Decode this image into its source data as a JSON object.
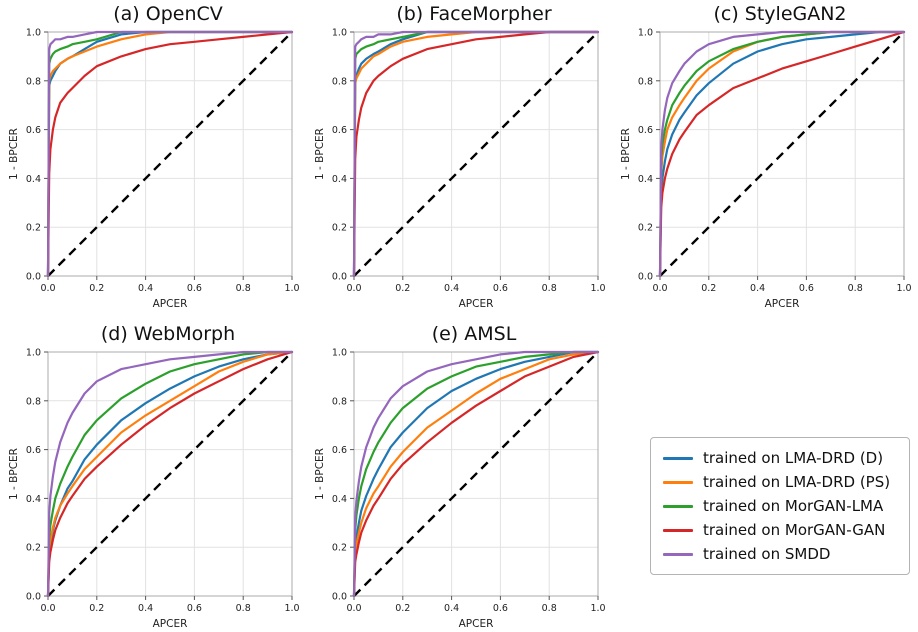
{
  "figure": {
    "description": "DET/ROC-style curves: 1-BPCER vs APCER for five morphing attack test sets"
  },
  "legend": {
    "items": [
      {
        "label": "trained on LMA-DRD (D)",
        "color": "#1f77b4"
      },
      {
        "label": "trained on LMA-DRD (PS)",
        "color": "#ff7f0e"
      },
      {
        "label": "trained on MorGAN-LMA",
        "color": "#2ca02c"
      },
      {
        "label": "trained on MorGAN-GAN",
        "color": "#d62728"
      },
      {
        "label": "trained on SMDD",
        "color": "#9467bd"
      }
    ]
  },
  "chart_data": [
    {
      "type": "line",
      "title": "(a) OpenCV",
      "xlabel": "APCER",
      "ylabel": "1 - BPCER",
      "xlim": [
        0,
        1
      ],
      "ylim": [
        0,
        1
      ],
      "ticks": [
        0.0,
        0.2,
        0.4,
        0.6,
        0.8,
        1.0
      ],
      "grid": true,
      "diagonal_dashed": true,
      "x": [
        0,
        0.005,
        0.01,
        0.02,
        0.03,
        0.05,
        0.08,
        0.1,
        0.15,
        0.2,
        0.3,
        0.4,
        0.5,
        0.6,
        0.7,
        0.8,
        0.9,
        1.0
      ],
      "series": [
        {
          "name": "trained on LMA-DRD (D)",
          "color": "#1f77b4",
          "y": [
            0,
            0.78,
            0.8,
            0.82,
            0.84,
            0.87,
            0.89,
            0.9,
            0.93,
            0.96,
            0.99,
            1.0,
            1.0,
            1.0,
            1.0,
            1.0,
            1.0,
            1.0
          ]
        },
        {
          "name": "trained on LMA-DRD (PS)",
          "color": "#ff7f0e",
          "y": [
            0,
            0.8,
            0.82,
            0.84,
            0.85,
            0.87,
            0.89,
            0.9,
            0.92,
            0.94,
            0.97,
            0.99,
            1.0,
            1.0,
            1.0,
            1.0,
            1.0,
            1.0
          ]
        },
        {
          "name": "trained on MorGAN-LMA",
          "color": "#2ca02c",
          "y": [
            0,
            0.87,
            0.89,
            0.91,
            0.92,
            0.93,
            0.94,
            0.95,
            0.96,
            0.97,
            1.0,
            1.0,
            1.0,
            1.0,
            1.0,
            1.0,
            1.0,
            1.0
          ]
        },
        {
          "name": "trained on MorGAN-GAN",
          "color": "#d62728",
          "y": [
            0,
            0.42,
            0.52,
            0.6,
            0.65,
            0.71,
            0.75,
            0.77,
            0.82,
            0.86,
            0.9,
            0.93,
            0.95,
            0.96,
            0.97,
            0.98,
            0.99,
            1.0
          ]
        },
        {
          "name": "trained on SMDD",
          "color": "#9467bd",
          "y": [
            0,
            0.93,
            0.95,
            0.96,
            0.97,
            0.97,
            0.98,
            0.98,
            0.99,
            1.0,
            1.0,
            1.0,
            1.0,
            1.0,
            1.0,
            1.0,
            1.0,
            1.0
          ]
        }
      ]
    },
    {
      "type": "line",
      "title": "(b) FaceMorpher",
      "xlabel": "APCER",
      "ylabel": "1 - BPCER",
      "xlim": [
        0,
        1
      ],
      "ylim": [
        0,
        1
      ],
      "ticks": [
        0.0,
        0.2,
        0.4,
        0.6,
        0.8,
        1.0
      ],
      "grid": true,
      "diagonal_dashed": true,
      "x": [
        0,
        0.005,
        0.01,
        0.02,
        0.03,
        0.05,
        0.08,
        0.1,
        0.15,
        0.2,
        0.3,
        0.4,
        0.5,
        0.6,
        0.7,
        0.8,
        0.9,
        1.0
      ],
      "series": [
        {
          "name": "trained on LMA-DRD (D)",
          "color": "#1f77b4",
          "y": [
            0,
            0.8,
            0.82,
            0.85,
            0.87,
            0.89,
            0.91,
            0.92,
            0.95,
            0.97,
            1.0,
            1.0,
            1.0,
            1.0,
            1.0,
            1.0,
            1.0,
            1.0
          ]
        },
        {
          "name": "trained on LMA-DRD (PS)",
          "color": "#ff7f0e",
          "y": [
            0,
            0.79,
            0.81,
            0.83,
            0.85,
            0.87,
            0.9,
            0.91,
            0.94,
            0.96,
            0.98,
            0.99,
            1.0,
            1.0,
            1.0,
            1.0,
            1.0,
            1.0
          ]
        },
        {
          "name": "trained on MorGAN-LMA",
          "color": "#2ca02c",
          "y": [
            0,
            0.89,
            0.91,
            0.92,
            0.93,
            0.94,
            0.95,
            0.96,
            0.97,
            0.98,
            1.0,
            1.0,
            1.0,
            1.0,
            1.0,
            1.0,
            1.0,
            1.0
          ]
        },
        {
          "name": "trained on MorGAN-GAN",
          "color": "#d62728",
          "y": [
            0,
            0.48,
            0.57,
            0.64,
            0.69,
            0.75,
            0.8,
            0.82,
            0.86,
            0.89,
            0.93,
            0.95,
            0.97,
            0.98,
            0.99,
            1.0,
            1.0,
            1.0
          ]
        },
        {
          "name": "trained on SMDD",
          "color": "#9467bd",
          "y": [
            0,
            0.94,
            0.95,
            0.96,
            0.97,
            0.98,
            0.98,
            0.99,
            0.99,
            1.0,
            1.0,
            1.0,
            1.0,
            1.0,
            1.0,
            1.0,
            1.0,
            1.0
          ]
        }
      ]
    },
    {
      "type": "line",
      "title": "(c) StyleGAN2",
      "xlabel": "APCER",
      "ylabel": "1 - BPCER",
      "xlim": [
        0,
        1
      ],
      "ylim": [
        0,
        1
      ],
      "ticks": [
        0.0,
        0.2,
        0.4,
        0.6,
        0.8,
        1.0
      ],
      "grid": true,
      "diagonal_dashed": true,
      "x": [
        0,
        0.005,
        0.01,
        0.02,
        0.03,
        0.05,
        0.08,
        0.1,
        0.15,
        0.2,
        0.3,
        0.4,
        0.5,
        0.6,
        0.7,
        0.8,
        0.9,
        1.0
      ],
      "series": [
        {
          "name": "trained on LMA-DRD (D)",
          "color": "#1f77b4",
          "y": [
            0,
            0.33,
            0.4,
            0.47,
            0.52,
            0.58,
            0.64,
            0.67,
            0.74,
            0.79,
            0.87,
            0.92,
            0.95,
            0.97,
            0.98,
            0.99,
            1.0,
            1.0
          ]
        },
        {
          "name": "trained on LMA-DRD (PS)",
          "color": "#ff7f0e",
          "y": [
            0,
            0.42,
            0.49,
            0.55,
            0.6,
            0.65,
            0.7,
            0.73,
            0.8,
            0.85,
            0.92,
            0.96,
            0.98,
            0.99,
            1.0,
            1.0,
            1.0,
            1.0
          ]
        },
        {
          "name": "trained on MorGAN-LMA",
          "color": "#2ca02c",
          "y": [
            0,
            0.48,
            0.54,
            0.6,
            0.64,
            0.7,
            0.75,
            0.78,
            0.84,
            0.88,
            0.93,
            0.96,
            0.98,
            0.99,
            1.0,
            1.0,
            1.0,
            1.0
          ]
        },
        {
          "name": "trained on MorGAN-GAN",
          "color": "#d62728",
          "y": [
            0,
            0.28,
            0.34,
            0.4,
            0.44,
            0.5,
            0.56,
            0.59,
            0.66,
            0.7,
            0.77,
            0.81,
            0.85,
            0.88,
            0.91,
            0.94,
            0.97,
            1.0
          ]
        },
        {
          "name": "trained on SMDD",
          "color": "#9467bd",
          "y": [
            0,
            0.52,
            0.6,
            0.68,
            0.73,
            0.79,
            0.84,
            0.87,
            0.92,
            0.95,
            0.98,
            0.99,
            1.0,
            1.0,
            1.0,
            1.0,
            1.0,
            1.0
          ]
        }
      ]
    },
    {
      "type": "line",
      "title": "(d) WebMorph",
      "xlabel": "APCER",
      "ylabel": "1 - BPCER",
      "xlim": [
        0,
        1
      ],
      "ylim": [
        0,
        1
      ],
      "ticks": [
        0.0,
        0.2,
        0.4,
        0.6,
        0.8,
        1.0
      ],
      "grid": true,
      "diagonal_dashed": true,
      "x": [
        0,
        0.005,
        0.01,
        0.02,
        0.03,
        0.05,
        0.08,
        0.1,
        0.15,
        0.2,
        0.3,
        0.4,
        0.5,
        0.6,
        0.7,
        0.8,
        0.9,
        1.0
      ],
      "series": [
        {
          "name": "trained on LMA-DRD (D)",
          "color": "#1f77b4",
          "y": [
            0,
            0.17,
            0.21,
            0.27,
            0.31,
            0.37,
            0.44,
            0.47,
            0.56,
            0.62,
            0.72,
            0.79,
            0.85,
            0.9,
            0.94,
            0.97,
            0.99,
            1.0
          ]
        },
        {
          "name": "trained on LMA-DRD (PS)",
          "color": "#ff7f0e",
          "y": [
            0,
            0.19,
            0.23,
            0.28,
            0.32,
            0.37,
            0.42,
            0.45,
            0.52,
            0.57,
            0.67,
            0.74,
            0.8,
            0.86,
            0.92,
            0.96,
            0.99,
            1.0
          ]
        },
        {
          "name": "trained on MorGAN-LMA",
          "color": "#2ca02c",
          "y": [
            0,
            0.24,
            0.29,
            0.35,
            0.4,
            0.46,
            0.53,
            0.57,
            0.66,
            0.72,
            0.81,
            0.87,
            0.92,
            0.95,
            0.97,
            0.99,
            1.0,
            1.0
          ]
        },
        {
          "name": "trained on MorGAN-GAN",
          "color": "#d62728",
          "y": [
            0,
            0.14,
            0.18,
            0.23,
            0.27,
            0.32,
            0.38,
            0.41,
            0.48,
            0.53,
            0.62,
            0.7,
            0.77,
            0.83,
            0.88,
            0.93,
            0.97,
            1.0
          ]
        },
        {
          "name": "trained on SMDD",
          "color": "#9467bd",
          "y": [
            0,
            0.34,
            0.41,
            0.49,
            0.55,
            0.63,
            0.71,
            0.75,
            0.83,
            0.88,
            0.93,
            0.95,
            0.97,
            0.98,
            0.99,
            1.0,
            1.0,
            1.0
          ]
        }
      ]
    },
    {
      "type": "line",
      "title": "(e) AMSL",
      "xlabel": "APCER",
      "ylabel": "1 - BPCER",
      "xlim": [
        0,
        1
      ],
      "ylim": [
        0,
        1
      ],
      "ticks": [
        0.0,
        0.2,
        0.4,
        0.6,
        0.8,
        1.0
      ],
      "grid": true,
      "diagonal_dashed": true,
      "x": [
        0,
        0.005,
        0.01,
        0.02,
        0.03,
        0.05,
        0.08,
        0.1,
        0.15,
        0.2,
        0.3,
        0.4,
        0.5,
        0.6,
        0.7,
        0.8,
        0.9,
        1.0
      ],
      "series": [
        {
          "name": "trained on LMA-DRD (D)",
          "color": "#1f77b4",
          "y": [
            0,
            0.19,
            0.24,
            0.3,
            0.35,
            0.41,
            0.48,
            0.52,
            0.61,
            0.67,
            0.77,
            0.84,
            0.89,
            0.93,
            0.96,
            0.98,
            1.0,
            1.0
          ]
        },
        {
          "name": "trained on LMA-DRD (PS)",
          "color": "#ff7f0e",
          "y": [
            0,
            0.17,
            0.21,
            0.26,
            0.3,
            0.36,
            0.42,
            0.45,
            0.53,
            0.59,
            0.69,
            0.76,
            0.83,
            0.89,
            0.93,
            0.97,
            0.99,
            1.0
          ]
        },
        {
          "name": "trained on MorGAN-LMA",
          "color": "#2ca02c",
          "y": [
            0,
            0.27,
            0.33,
            0.4,
            0.45,
            0.52,
            0.59,
            0.63,
            0.71,
            0.77,
            0.85,
            0.9,
            0.94,
            0.96,
            0.98,
            0.99,
            1.0,
            1.0
          ]
        },
        {
          "name": "trained on MorGAN-GAN",
          "color": "#d62728",
          "y": [
            0,
            0.14,
            0.17,
            0.22,
            0.26,
            0.31,
            0.37,
            0.4,
            0.48,
            0.54,
            0.63,
            0.71,
            0.78,
            0.84,
            0.9,
            0.94,
            0.98,
            1.0
          ]
        },
        {
          "name": "trained on SMDD",
          "color": "#9467bd",
          "y": [
            0,
            0.32,
            0.39,
            0.47,
            0.53,
            0.61,
            0.69,
            0.73,
            0.81,
            0.86,
            0.92,
            0.95,
            0.97,
            0.99,
            1.0,
            1.0,
            1.0,
            1.0
          ]
        }
      ]
    }
  ]
}
